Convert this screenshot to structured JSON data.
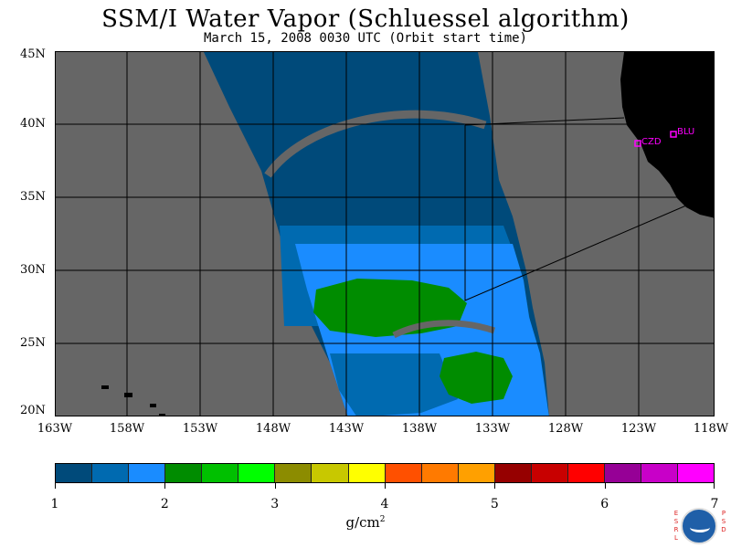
{
  "title": "SSM/I Water Vapor (Schluessel algorithm)",
  "subtitle": "March 15, 2008  0030 UTC  (Orbit start time)",
  "lat_labels": [
    "45N",
    "40N",
    "35N",
    "30N",
    "25N",
    "20N"
  ],
  "lon_labels": [
    "163W",
    "158W",
    "153W",
    "148W",
    "143W",
    "138W",
    "133W",
    "128W",
    "123W",
    "118W"
  ],
  "stations": [
    "CZD",
    "BLU"
  ],
  "colorbar": {
    "colors": [
      "#004a7a",
      "#006ab0",
      "#1a8cff",
      "#008c00",
      "#00c000",
      "#00ff00",
      "#8c8c00",
      "#c8c800",
      "#ffff00",
      "#ff5000",
      "#ff7a00",
      "#ffa000",
      "#960000",
      "#c80000",
      "#ff0000",
      "#960096",
      "#c800c8",
      "#ff00ff"
    ],
    "ticks": [
      "1",
      "2",
      "3",
      "4",
      "5",
      "6",
      "7"
    ],
    "units": "g/cm",
    "units_sup": "2"
  },
  "logo": {
    "text": "NOAA",
    "left_text": "ESRL",
    "right_text": "PSD"
  },
  "colors": {
    "land": "#000000",
    "no_data": "#666666",
    "station": "#ff00ff"
  }
}
